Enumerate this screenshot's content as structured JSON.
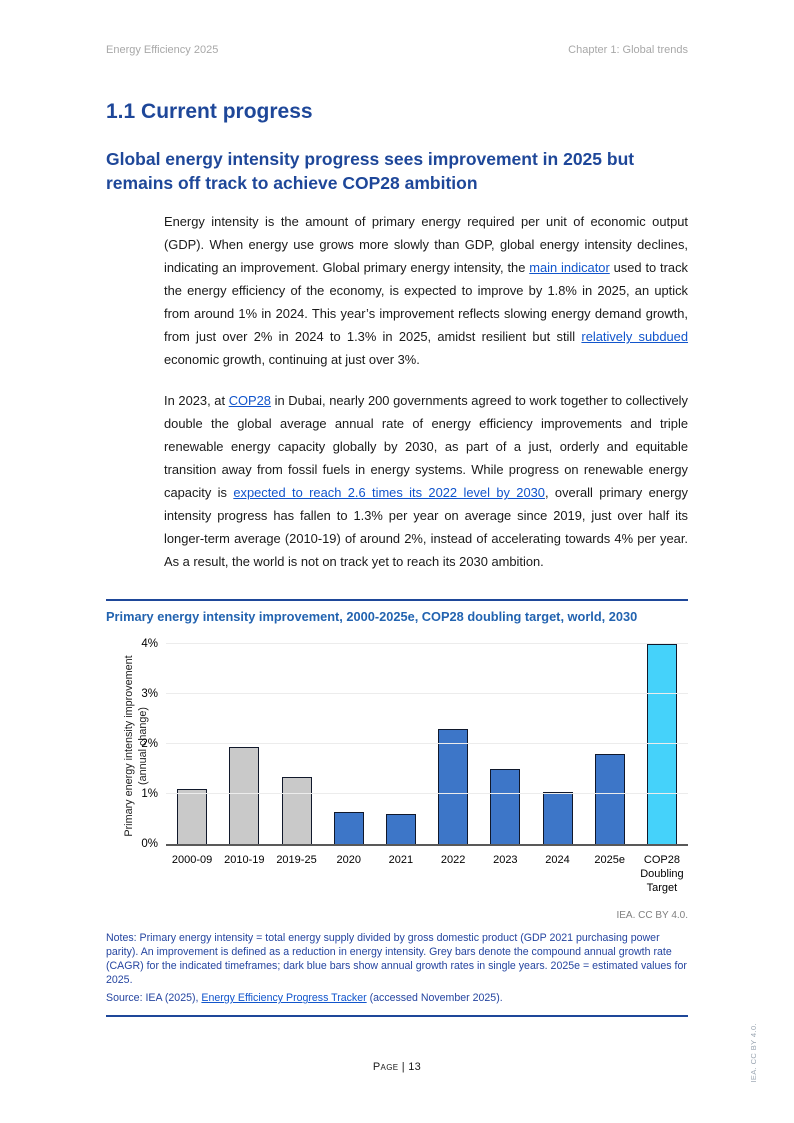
{
  "page": {
    "header_left": "Energy Efficiency 2025",
    "header_right": "Chapter 1: Global trends",
    "footer": "Page | 13",
    "side_attribution": "IEA. CC BY 4.0."
  },
  "section": {
    "h1": "1.1 Current progress",
    "h2": "Global energy intensity progress sees improvement in 2025 but remains off track to achieve COP28 ambition"
  },
  "paragraphs": {
    "p1": {
      "segments": [
        {
          "text": "Energy intensity is the amount of primary energy required per unit of economic output (GDP). When energy use grows more slowly than GDP, global energy intensity declines, indicating an improvement. Global primary energy intensity, the "
        },
        {
          "text": "main indicator",
          "link": true
        },
        {
          "text": " used to track the energy efficiency of the economy, is expected to improve by 1.8% in 2025, an uptick from around 1% in 2024. This year’s improvement reflects slowing energy demand growth, from just over 2% in 2024 to 1.3% in 2025, amidst resilient but still "
        },
        {
          "text": "relatively subdued",
          "link": true
        },
        {
          "text": " economic growth, continuing at just over 3%."
        }
      ]
    },
    "p2": {
      "segments": [
        {
          "text": "In 2023, at "
        },
        {
          "text": "COP28",
          "link": true
        },
        {
          "text": " in Dubai, nearly 200 governments agreed to work together to collectively double the global average annual rate of energy efficiency improvements and triple renewable energy capacity globally by 2030, as part of a just, orderly and equitable transition away from fossil fuels in energy systems. While progress on renewable energy capacity is "
        },
        {
          "text": "expected to reach 2.6 times its 2022 level by 2030",
          "link": true
        },
        {
          "text": ", overall primary energy intensity progress has fallen to 1.3% per year on average since 2019, just over half its longer-term average (2010-19) of around 2%, instead of accelerating towards 4% per year. As a result, the world is not on track yet to reach its 2030 ambition."
        }
      ]
    }
  },
  "figure": {
    "title": "Primary energy intensity improvement, 2000-2025e, COP28 doubling target, world, 2030",
    "attribution": "IEA. CC BY 4.0.",
    "notes": "Notes: Primary energy intensity = total energy supply divided by gross domestic product (GDP 2021 purchasing power parity). An improvement is defined as a reduction in energy intensity. Grey bars denote the compound annual growth rate (CAGR) for the indicated timeframes; dark blue bars show annual growth rates in single years. 2025e = estimated values for 2025.",
    "source": {
      "segments": [
        {
          "text": "Source: IEA (2025), "
        },
        {
          "text": "Energy Efficiency Progress Tracker",
          "link": true
        },
        {
          "text": " (accessed November 2025)."
        }
      ]
    }
  },
  "chart_data": {
    "type": "bar",
    "title": "Primary energy intensity improvement, 2000-2025e, COP28 doubling target, world, 2030",
    "ylabel": "Primary energy intensity improvement (annual change)",
    "ylabel_line1": "Primary energy intensity improvement",
    "ylabel_line2": "(annual change)",
    "xlabel": "",
    "ylim": [
      0,
      4
    ],
    "y_ticks": [
      "0%",
      "1%",
      "2%",
      "3%",
      "4%"
    ],
    "grid": "horizontal",
    "legend": "none",
    "categories": [
      "2000-09",
      "2010-19",
      "2019-25",
      "2020",
      "2021",
      "2022",
      "2023",
      "2024",
      "2025e",
      "COP28 Doubling Target"
    ],
    "values": [
      1.1,
      1.95,
      1.35,
      0.65,
      0.6,
      2.3,
      1.5,
      1.05,
      1.8,
      4.0
    ],
    "bar_colors": [
      "#C9C9C9",
      "#C9C9C9",
      "#C9C9C9",
      "#3D76C8",
      "#3D76C8",
      "#3D76C8",
      "#3D76C8",
      "#3D76C8",
      "#3D76C8",
      "#45D2FA"
    ],
    "color_meaning": {
      "grey": "compound annual growth rate (CAGR) for the indicated timeframes",
      "dark_blue": "annual growth rates in single years",
      "light_blue": "COP28 doubling target"
    }
  },
  "colors": {
    "heading": "#1E4799",
    "chart_title": "#2263B0",
    "notes_text": "#2545A0",
    "link": "#1155CC",
    "rule": "#1E4799",
    "header_grey": "#A8A8A8",
    "bar_grey": "#C9C9C9",
    "bar_blue": "#3D76C8",
    "bar_cyan": "#45D2FA"
  }
}
